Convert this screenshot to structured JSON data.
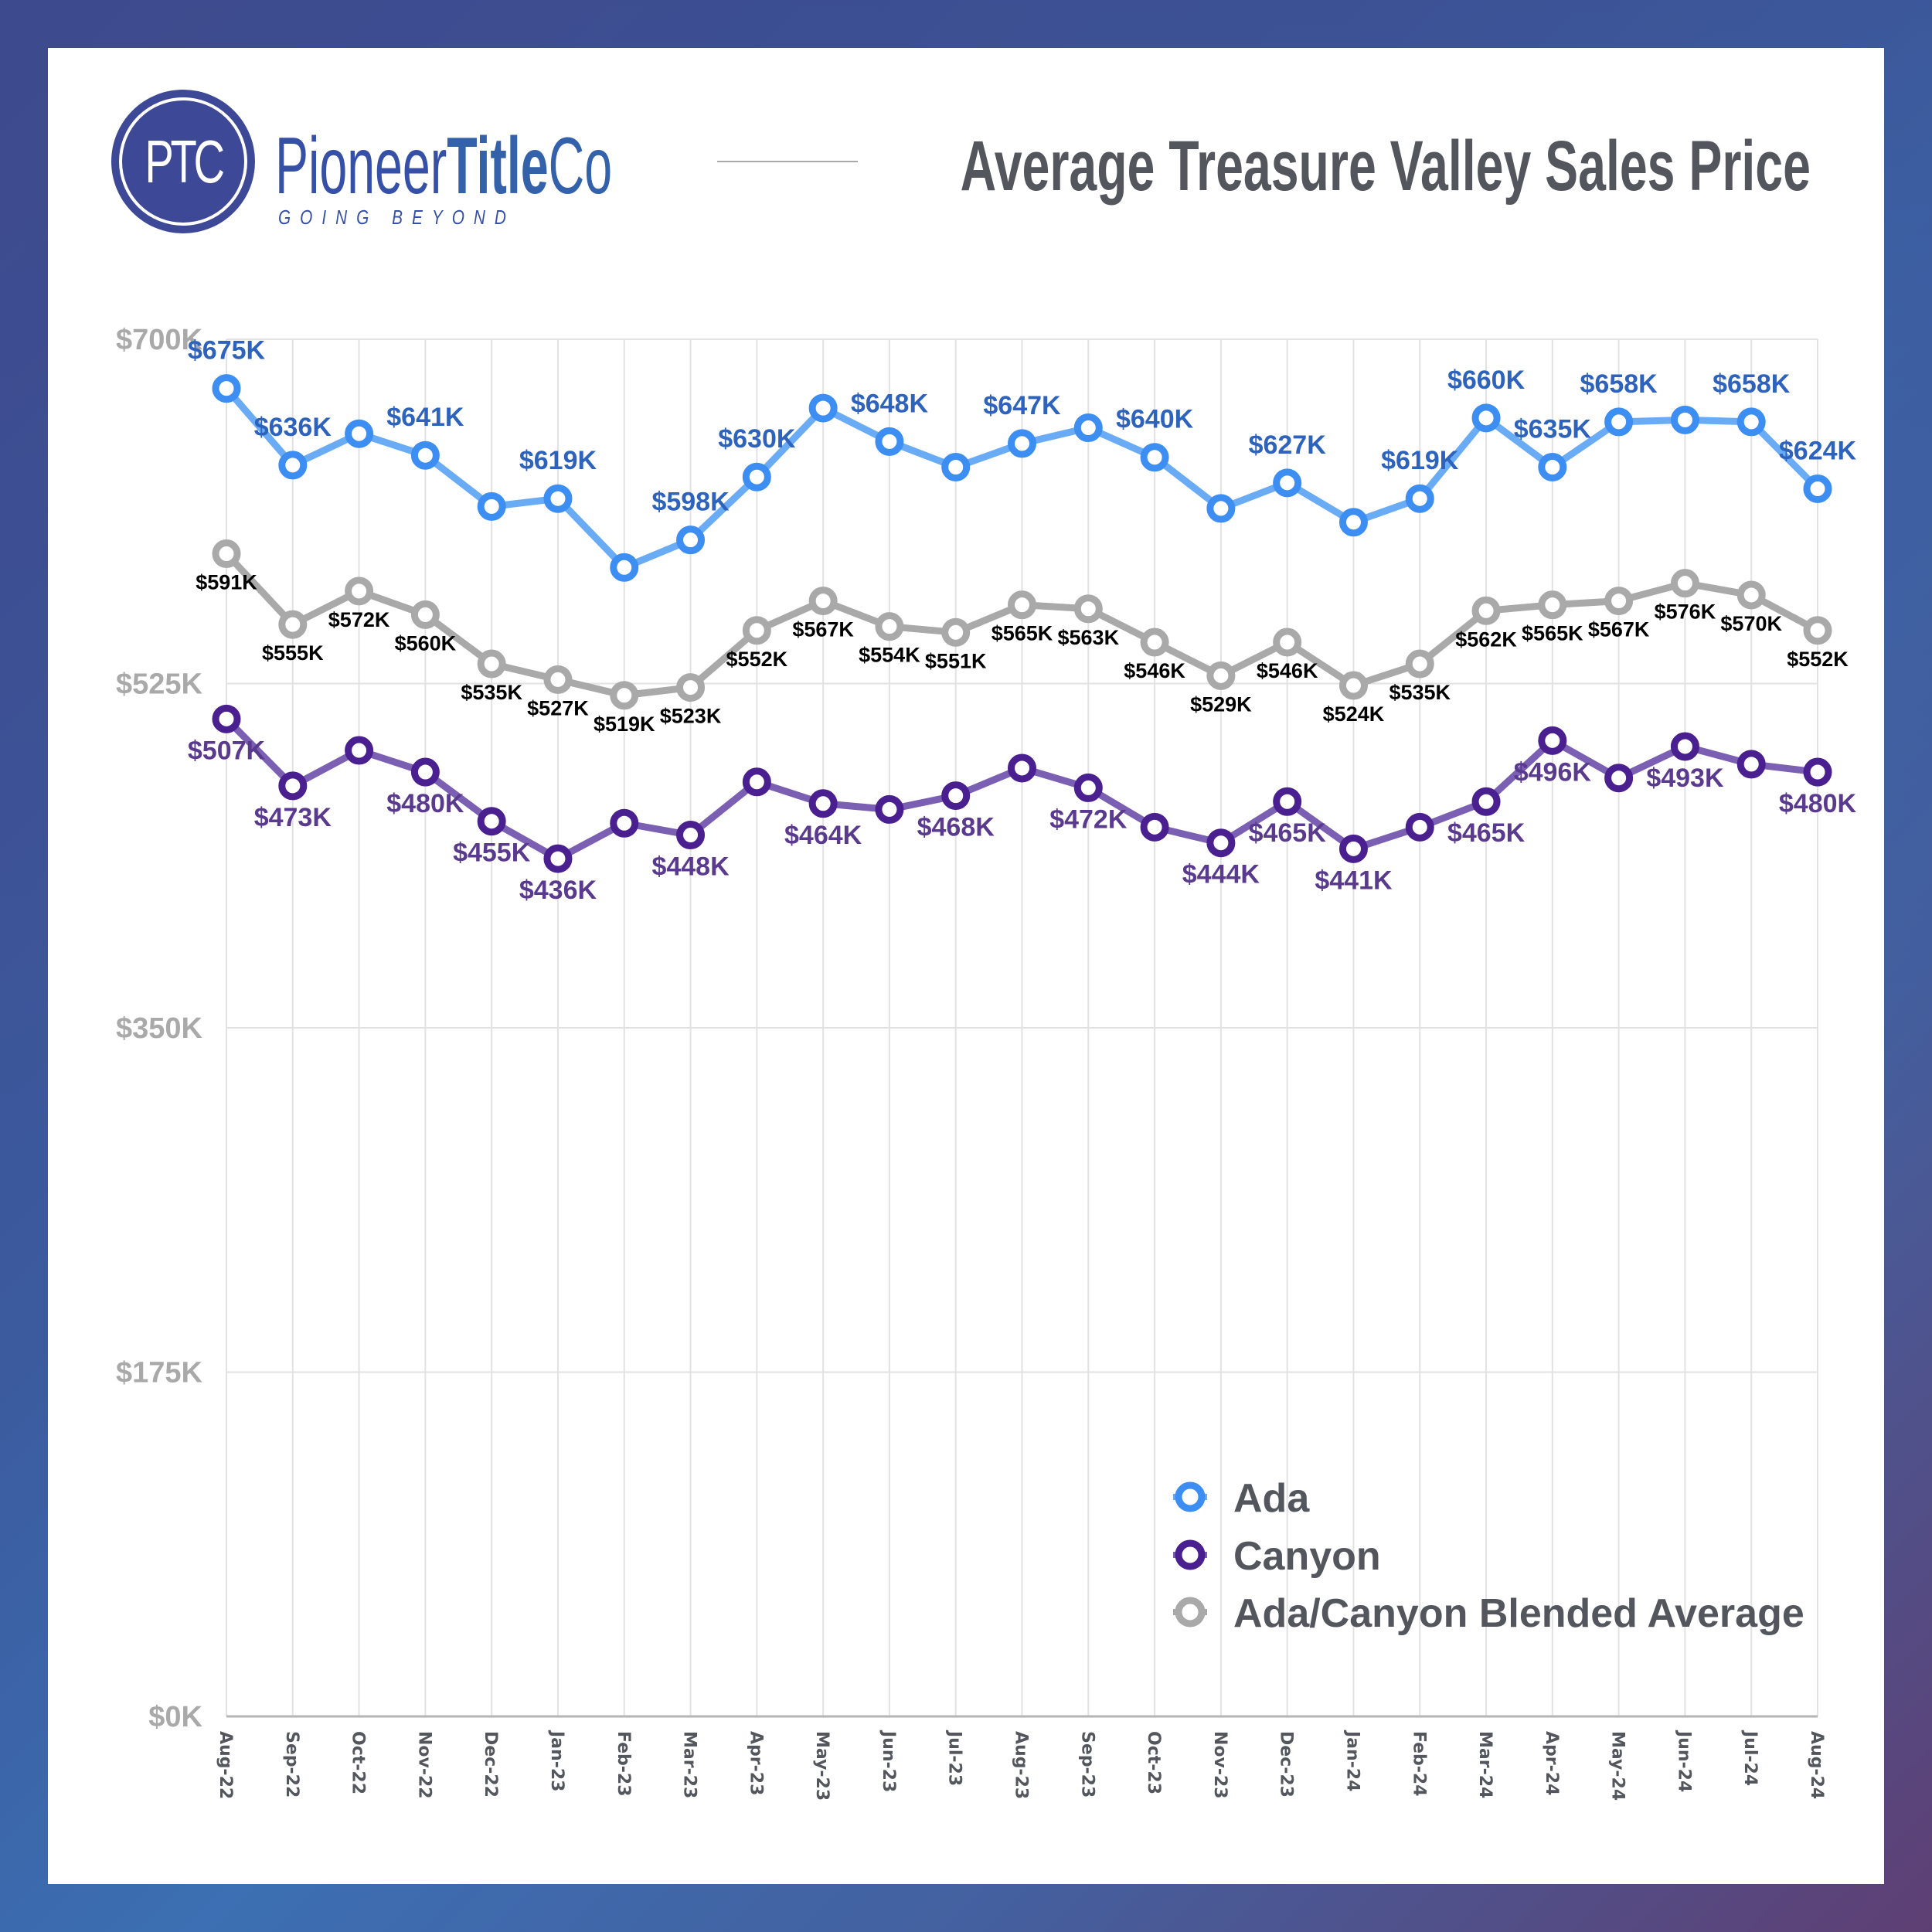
{
  "header": {
    "logo_initials": "PTC",
    "brand_regular": "Pioneer",
    "brand_bold": "Title",
    "brand_suffix": "Co",
    "tagline": "GOING BEYOND",
    "title": "Average Treasure Valley Sales Price"
  },
  "colors": {
    "ada_line": "#6aabf5",
    "ada_marker": "#3d8ef2",
    "ada_label": "#2d62bd",
    "canyon_line": "#7a5fb3",
    "canyon_marker": "#4a1f8f",
    "canyon_label": "#5a3a8e",
    "blend_line": "#a9a9a9",
    "blend_marker": "#a9a9a9",
    "blend_label": "#000000",
    "grid": "#e2e2e2",
    "axis_text": "#a9a9a9"
  },
  "chart_data": {
    "type": "line",
    "title": "Average Treasure Valley Sales Price",
    "xlabel": "",
    "ylabel": "",
    "ylim": [
      0,
      700
    ],
    "y_unit": "thousands USD",
    "yticks": [
      0,
      175,
      350,
      525,
      700
    ],
    "ytick_labels": [
      "$0K",
      "$175K",
      "$350K",
      "$525K",
      "$700K"
    ],
    "grid": true,
    "legend_position": "bottom-right",
    "categories": [
      "Aug-22",
      "Sep-22",
      "Oct-22",
      "Nov-22",
      "Dec-22",
      "Jan-23",
      "Feb-23",
      "Mar-23",
      "Apr-23",
      "May-23",
      "Jun-23",
      "Jul-23",
      "Aug-23",
      "Sep-23",
      "Oct-23",
      "Nov-23",
      "Dec-23",
      "Jan-24",
      "Feb-24",
      "Mar-24",
      "Apr-24",
      "May-24",
      "Jun-24",
      "Jul-24",
      "Aug-24"
    ],
    "series": [
      {
        "name": "Ada",
        "key": "ada",
        "values": [
          675,
          636,
          652,
          641,
          615,
          619,
          584,
          598,
          630,
          665,
          648,
          635,
          647,
          655,
          640,
          614,
          627,
          607,
          619,
          660,
          635,
          658,
          659,
          658,
          624
        ],
        "labeled": [
          true,
          true,
          false,
          true,
          false,
          true,
          false,
          true,
          true,
          false,
          true,
          false,
          true,
          false,
          true,
          false,
          true,
          false,
          true,
          true,
          true,
          true,
          false,
          true,
          true
        ],
        "label_position": "above"
      },
      {
        "name": "Canyon",
        "key": "canyon",
        "values": [
          507,
          473,
          491,
          480,
          455,
          436,
          454,
          448,
          475,
          464,
          461,
          468,
          482,
          472,
          452,
          444,
          465,
          441,
          452,
          465,
          496,
          477,
          493,
          484,
          480
        ],
        "labeled": [
          true,
          true,
          false,
          true,
          true,
          true,
          false,
          true,
          false,
          true,
          false,
          true,
          false,
          true,
          false,
          true,
          true,
          true,
          false,
          true,
          true,
          false,
          true,
          false,
          true
        ],
        "label_position": "below"
      },
      {
        "name": "Ada/Canyon Blended Average",
        "key": "blend",
        "values": [
          591,
          555,
          572,
          560,
          535,
          527,
          519,
          523,
          552,
          567,
          554,
          551,
          565,
          563,
          546,
          529,
          546,
          524,
          535,
          562,
          565,
          567,
          576,
          570,
          552
        ],
        "labeled": [
          true,
          true,
          true,
          true,
          true,
          true,
          true,
          true,
          true,
          true,
          true,
          true,
          true,
          true,
          true,
          true,
          true,
          true,
          true,
          true,
          true,
          true,
          true,
          true,
          true
        ],
        "label_position": "below"
      }
    ]
  },
  "legend": {
    "items": [
      {
        "label": "Ada",
        "key": "ada"
      },
      {
        "label": "Canyon",
        "key": "canyon"
      },
      {
        "label": "Ada/Canyon Blended Average",
        "key": "blend"
      }
    ]
  }
}
